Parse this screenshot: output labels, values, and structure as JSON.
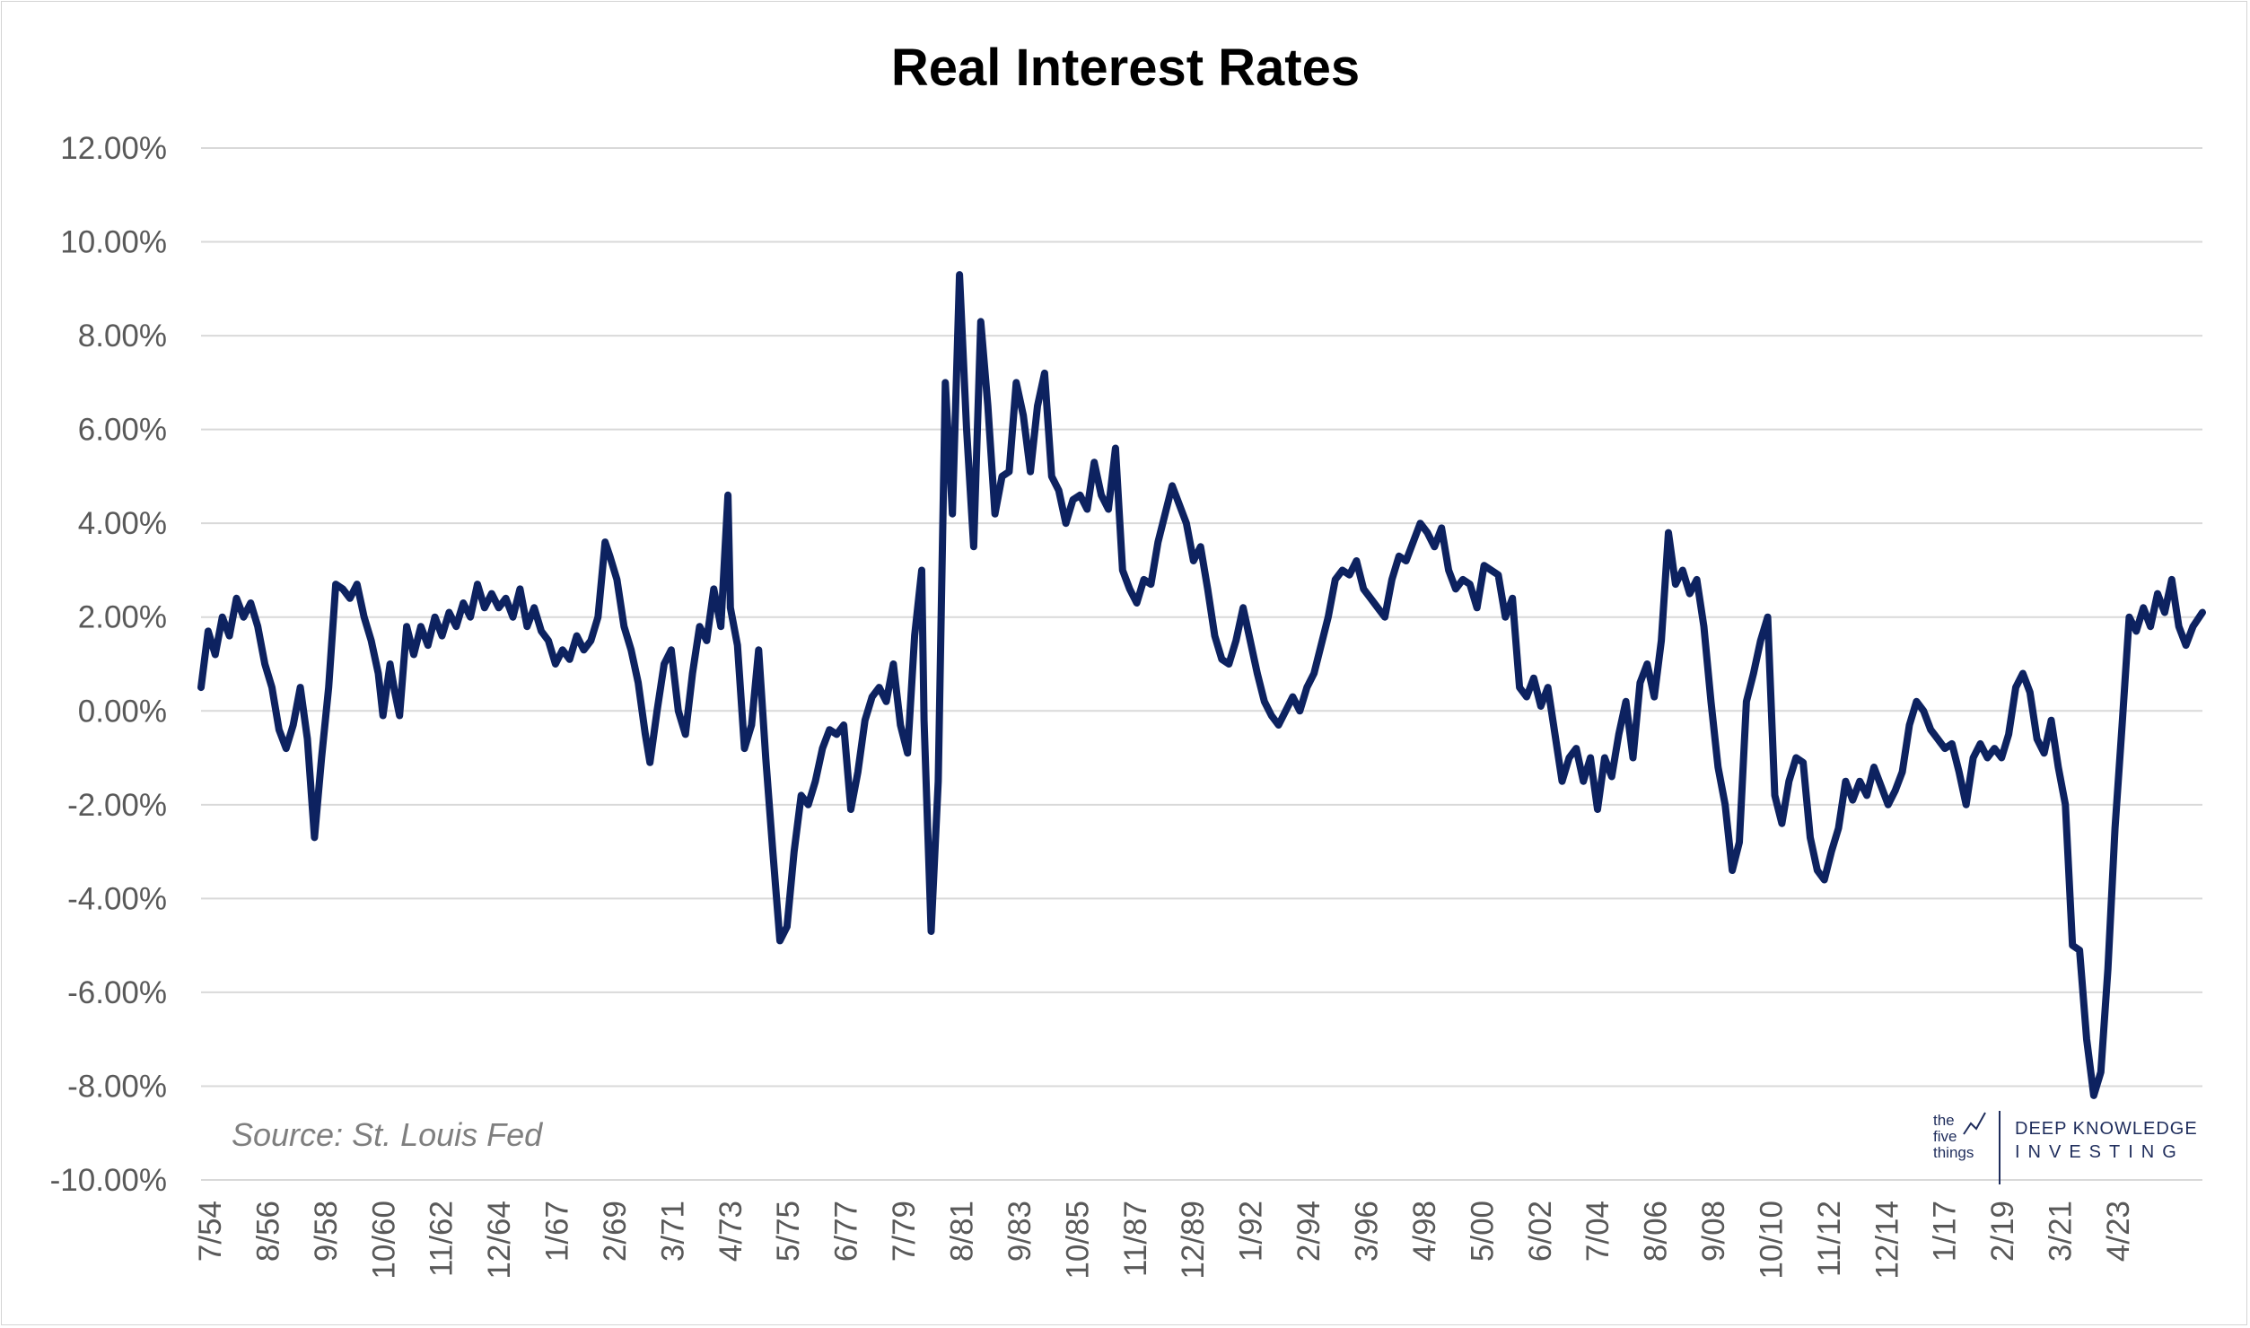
{
  "chart_data": {
    "type": "line",
    "title": "Real Interest Rates",
    "source_note": "Source: St. Louis Fed",
    "ylim": [
      -10,
      12
    ],
    "y_ticks": [
      12,
      10,
      8,
      6,
      4,
      2,
      0,
      -2,
      -4,
      -6,
      -8,
      -10
    ],
    "y_tick_labels": [
      "12.00%",
      "10.00%",
      "8.00%",
      "6.00%",
      "4.00%",
      "2.00%",
      "0.00%",
      "-2.00%",
      "-4.00%",
      "-6.00%",
      "-8.00%",
      "-10.00%"
    ],
    "grid": "horizontal",
    "x_tick_labels": [
      "7/54",
      "8/56",
      "9/58",
      "10/60",
      "11/62",
      "12/64",
      "1/67",
      "2/69",
      "3/71",
      "4/73",
      "5/75",
      "6/77",
      "7/79",
      "8/81",
      "9/83",
      "10/85",
      "11/87",
      "12/89",
      "1/92",
      "2/94",
      "3/96",
      "4/98",
      "5/00",
      "6/02",
      "7/04",
      "8/06",
      "9/08",
      "10/10",
      "11/12",
      "12/14",
      "1/17",
      "2/19",
      "3/21",
      "4/23"
    ],
    "x_range": [
      "1954-07",
      "2025-02"
    ],
    "series": [
      {
        "color": "#0d2260",
        "points": [
          [
            "1954-07",
            0.5
          ],
          [
            "1954-10",
            1.7
          ],
          [
            "1955-01",
            1.2
          ],
          [
            "1955-04",
            2.0
          ],
          [
            "1955-07",
            1.6
          ],
          [
            "1955-10",
            2.4
          ],
          [
            "1956-01",
            2.0
          ],
          [
            "1956-04",
            2.3
          ],
          [
            "1956-07",
            1.8
          ],
          [
            "1956-10",
            1.0
          ],
          [
            "1957-01",
            0.5
          ],
          [
            "1957-04",
            -0.4
          ],
          [
            "1957-07",
            -0.8
          ],
          [
            "1957-10",
            -0.3
          ],
          [
            "1958-01",
            0.5
          ],
          [
            "1958-04",
            -0.6
          ],
          [
            "1958-07",
            -2.7
          ],
          [
            "1958-10",
            -1.0
          ],
          [
            "1959-01",
            0.5
          ],
          [
            "1959-04",
            2.7
          ],
          [
            "1959-07",
            2.6
          ],
          [
            "1959-10",
            2.4
          ],
          [
            "1960-01",
            2.7
          ],
          [
            "1960-04",
            2.0
          ],
          [
            "1960-07",
            1.5
          ],
          [
            "1960-10",
            0.8
          ],
          [
            "1960-12",
            -0.1
          ],
          [
            "1961-03",
            1.0
          ],
          [
            "1961-05",
            0.4
          ],
          [
            "1961-07",
            -0.1
          ],
          [
            "1961-10",
            1.8
          ],
          [
            "1962-01",
            1.2
          ],
          [
            "1962-04",
            1.8
          ],
          [
            "1962-07",
            1.4
          ],
          [
            "1962-10",
            2.0
          ],
          [
            "1963-01",
            1.6
          ],
          [
            "1963-04",
            2.1
          ],
          [
            "1963-07",
            1.8
          ],
          [
            "1963-10",
            2.3
          ],
          [
            "1964-01",
            2.0
          ],
          [
            "1964-04",
            2.7
          ],
          [
            "1964-07",
            2.2
          ],
          [
            "1964-10",
            2.5
          ],
          [
            "1965-01",
            2.2
          ],
          [
            "1965-04",
            2.4
          ],
          [
            "1965-07",
            2.0
          ],
          [
            "1965-10",
            2.6
          ],
          [
            "1966-01",
            1.8
          ],
          [
            "1966-04",
            2.2
          ],
          [
            "1966-07",
            1.7
          ],
          [
            "1966-10",
            1.5
          ],
          [
            "1967-01",
            1.0
          ],
          [
            "1967-04",
            1.3
          ],
          [
            "1967-07",
            1.1
          ],
          [
            "1967-10",
            1.6
          ],
          [
            "1968-01",
            1.3
          ],
          [
            "1968-04",
            1.5
          ],
          [
            "1968-07",
            2.0
          ],
          [
            "1968-10",
            3.6
          ],
          [
            "1968-12",
            3.3
          ],
          [
            "1969-03",
            2.8
          ],
          [
            "1969-06",
            1.8
          ],
          [
            "1969-09",
            1.3
          ],
          [
            "1969-12",
            0.6
          ],
          [
            "1970-03",
            -0.5
          ],
          [
            "1970-05",
            -1.1
          ],
          [
            "1970-08",
            0.0
          ],
          [
            "1970-11",
            1.0
          ],
          [
            "1971-02",
            1.3
          ],
          [
            "1971-05",
            0.0
          ],
          [
            "1971-08",
            -0.5
          ],
          [
            "1971-11",
            0.8
          ],
          [
            "1972-02",
            1.8
          ],
          [
            "1972-05",
            1.5
          ],
          [
            "1972-08",
            2.6
          ],
          [
            "1972-11",
            1.8
          ],
          [
            "1973-02",
            4.6
          ],
          [
            "1973-03",
            2.2
          ],
          [
            "1973-06",
            1.4
          ],
          [
            "1973-09",
            -0.8
          ],
          [
            "1973-12",
            -0.3
          ],
          [
            "1974-03",
            1.3
          ],
          [
            "1974-06",
            -1.0
          ],
          [
            "1974-09",
            -3.0
          ],
          [
            "1974-12",
            -4.9
          ],
          [
            "1975-03",
            -4.6
          ],
          [
            "1975-06",
            -3.0
          ],
          [
            "1975-09",
            -1.8
          ],
          [
            "1975-12",
            -2.0
          ],
          [
            "1976-03",
            -1.5
          ],
          [
            "1976-06",
            -0.8
          ],
          [
            "1976-09",
            -0.4
          ],
          [
            "1976-12",
            -0.5
          ],
          [
            "1977-03",
            -0.3
          ],
          [
            "1977-06",
            -2.1
          ],
          [
            "1977-09",
            -1.3
          ],
          [
            "1977-12",
            -0.2
          ],
          [
            "1978-03",
            0.3
          ],
          [
            "1978-06",
            0.5
          ],
          [
            "1978-09",
            0.2
          ],
          [
            "1978-12",
            1.0
          ],
          [
            "1979-03",
            -0.3
          ],
          [
            "1979-06",
            -0.9
          ],
          [
            "1979-09",
            1.6
          ],
          [
            "1979-12",
            3.0
          ],
          [
            "1980-01",
            -0.2
          ],
          [
            "1980-04",
            -4.7
          ],
          [
            "1980-07",
            -1.5
          ],
          [
            "1980-10",
            7.0
          ],
          [
            "1981-01",
            4.2
          ],
          [
            "1981-04",
            9.3
          ],
          [
            "1981-07",
            6.0
          ],
          [
            "1981-10",
            3.5
          ],
          [
            "1982-01",
            8.3
          ],
          [
            "1982-04",
            6.5
          ],
          [
            "1982-07",
            4.2
          ],
          [
            "1982-10",
            5.0
          ],
          [
            "1983-01",
            5.1
          ],
          [
            "1983-04",
            7.0
          ],
          [
            "1983-07",
            6.3
          ],
          [
            "1983-10",
            5.1
          ],
          [
            "1984-01",
            6.5
          ],
          [
            "1984-04",
            7.2
          ],
          [
            "1984-07",
            5.0
          ],
          [
            "1984-10",
            4.7
          ],
          [
            "1985-01",
            4.0
          ],
          [
            "1985-04",
            4.5
          ],
          [
            "1985-07",
            4.6
          ],
          [
            "1985-10",
            4.3
          ],
          [
            "1986-01",
            5.3
          ],
          [
            "1986-04",
            4.6
          ],
          [
            "1986-07",
            4.3
          ],
          [
            "1986-10",
            5.6
          ],
          [
            "1987-01",
            3.0
          ],
          [
            "1987-04",
            2.6
          ],
          [
            "1987-07",
            2.3
          ],
          [
            "1987-10",
            2.8
          ],
          [
            "1988-01",
            2.7
          ],
          [
            "1988-04",
            3.6
          ],
          [
            "1988-07",
            4.2
          ],
          [
            "1988-10",
            4.8
          ],
          [
            "1989-01",
            4.4
          ],
          [
            "1989-04",
            4.0
          ],
          [
            "1989-07",
            3.2
          ],
          [
            "1989-10",
            3.5
          ],
          [
            "1990-01",
            2.6
          ],
          [
            "1990-04",
            1.6
          ],
          [
            "1990-07",
            1.1
          ],
          [
            "1990-10",
            1.0
          ],
          [
            "1991-01",
            1.5
          ],
          [
            "1991-04",
            2.2
          ],
          [
            "1991-07",
            1.5
          ],
          [
            "1991-10",
            0.8
          ],
          [
            "1992-01",
            0.2
          ],
          [
            "1992-04",
            -0.1
          ],
          [
            "1992-07",
            -0.3
          ],
          [
            "1992-10",
            0.0
          ],
          [
            "1993-01",
            0.3
          ],
          [
            "1993-04",
            0.0
          ],
          [
            "1993-07",
            0.5
          ],
          [
            "1993-10",
            0.8
          ],
          [
            "1994-01",
            1.4
          ],
          [
            "1994-04",
            2.0
          ],
          [
            "1994-07",
            2.8
          ],
          [
            "1994-10",
            3.0
          ],
          [
            "1995-01",
            2.9
          ],
          [
            "1995-04",
            3.2
          ],
          [
            "1995-07",
            2.6
          ],
          [
            "1995-10",
            2.4
          ],
          [
            "1996-01",
            2.2
          ],
          [
            "1996-04",
            2.0
          ],
          [
            "1996-07",
            2.8
          ],
          [
            "1996-10",
            3.3
          ],
          [
            "1997-01",
            3.2
          ],
          [
            "1997-04",
            3.6
          ],
          [
            "1997-07",
            4.0
          ],
          [
            "1997-10",
            3.8
          ],
          [
            "1998-01",
            3.5
          ],
          [
            "1998-04",
            3.9
          ],
          [
            "1998-07",
            3.0
          ],
          [
            "1998-10",
            2.6
          ],
          [
            "1999-01",
            2.8
          ],
          [
            "1999-04",
            2.7
          ],
          [
            "1999-07",
            2.2
          ],
          [
            "1999-10",
            3.1
          ],
          [
            "2000-01",
            3.0
          ],
          [
            "2000-04",
            2.9
          ],
          [
            "2000-07",
            2.0
          ],
          [
            "2000-10",
            2.4
          ],
          [
            "2001-01",
            0.5
          ],
          [
            "2001-04",
            0.3
          ],
          [
            "2001-07",
            0.7
          ],
          [
            "2001-10",
            0.1
          ],
          [
            "2002-01",
            0.5
          ],
          [
            "2002-04",
            -0.5
          ],
          [
            "2002-07",
            -1.5
          ],
          [
            "2002-10",
            -1.0
          ],
          [
            "2003-01",
            -0.8
          ],
          [
            "2003-04",
            -1.5
          ],
          [
            "2003-07",
            -1.0
          ],
          [
            "2003-10",
            -2.1
          ],
          [
            "2004-01",
            -1.0
          ],
          [
            "2004-04",
            -1.4
          ],
          [
            "2004-07",
            -0.5
          ],
          [
            "2004-10",
            0.2
          ],
          [
            "2005-01",
            -1.0
          ],
          [
            "2005-04",
            0.6
          ],
          [
            "2005-07",
            1.0
          ],
          [
            "2005-10",
            0.3
          ],
          [
            "2006-01",
            1.5
          ],
          [
            "2006-04",
            3.8
          ],
          [
            "2006-07",
            2.7
          ],
          [
            "2006-10",
            3.0
          ],
          [
            "2007-01",
            2.5
          ],
          [
            "2007-04",
            2.8
          ],
          [
            "2007-07",
            1.8
          ],
          [
            "2007-10",
            0.2
          ],
          [
            "2008-01",
            -1.2
          ],
          [
            "2008-04",
            -2.0
          ],
          [
            "2008-07",
            -3.4
          ],
          [
            "2008-10",
            -2.8
          ],
          [
            "2009-01",
            0.2
          ],
          [
            "2009-04",
            0.8
          ],
          [
            "2009-07",
            1.5
          ],
          [
            "2009-10",
            2.0
          ],
          [
            "2010-01",
            -1.8
          ],
          [
            "2010-04",
            -2.4
          ],
          [
            "2010-07",
            -1.5
          ],
          [
            "2010-10",
            -1.0
          ],
          [
            "2011-01",
            -1.1
          ],
          [
            "2011-04",
            -2.7
          ],
          [
            "2011-07",
            -3.4
          ],
          [
            "2011-10",
            -3.6
          ],
          [
            "2012-01",
            -3.0
          ],
          [
            "2012-04",
            -2.5
          ],
          [
            "2012-07",
            -1.5
          ],
          [
            "2012-10",
            -1.9
          ],
          [
            "2013-01",
            -1.5
          ],
          [
            "2013-04",
            -1.8
          ],
          [
            "2013-07",
            -1.2
          ],
          [
            "2013-10",
            -1.6
          ],
          [
            "2014-01",
            -2.0
          ],
          [
            "2014-04",
            -1.7
          ],
          [
            "2014-07",
            -1.3
          ],
          [
            "2014-10",
            -0.3
          ],
          [
            "2015-01",
            0.2
          ],
          [
            "2015-04",
            0.0
          ],
          [
            "2015-07",
            -0.4
          ],
          [
            "2015-10",
            -0.6
          ],
          [
            "2016-01",
            -0.8
          ],
          [
            "2016-04",
            -0.7
          ],
          [
            "2016-07",
            -1.3
          ],
          [
            "2016-10",
            -2.0
          ],
          [
            "2017-01",
            -1.0
          ],
          [
            "2017-04",
            -0.7
          ],
          [
            "2017-07",
            -1.0
          ],
          [
            "2017-10",
            -0.8
          ],
          [
            "2018-01",
            -1.0
          ],
          [
            "2018-04",
            -0.5
          ],
          [
            "2018-07",
            0.5
          ],
          [
            "2018-10",
            0.8
          ],
          [
            "2019-01",
            0.4
          ],
          [
            "2019-04",
            -0.6
          ],
          [
            "2019-07",
            -0.9
          ],
          [
            "2019-10",
            -0.2
          ],
          [
            "2020-01",
            -1.2
          ],
          [
            "2020-04",
            -2.0
          ],
          [
            "2020-07",
            -5.0
          ],
          [
            "2020-10",
            -5.1
          ],
          [
            "2021-01",
            -7.0
          ],
          [
            "2021-04",
            -8.2
          ],
          [
            "2021-07",
            -7.7
          ],
          [
            "2021-10",
            -5.5
          ],
          [
            "2022-01",
            -2.5
          ],
          [
            "2022-04",
            -0.3
          ],
          [
            "2022-07",
            2.0
          ],
          [
            "2022-10",
            1.7
          ],
          [
            "2023-01",
            2.2
          ],
          [
            "2023-04",
            1.8
          ],
          [
            "2023-07",
            2.5
          ],
          [
            "2023-10",
            2.1
          ],
          [
            "2024-01",
            2.8
          ],
          [
            "2024-04",
            1.8
          ],
          [
            "2024-07",
            1.4
          ],
          [
            "2024-10",
            1.8
          ],
          [
            "2025-02",
            2.1
          ]
        ]
      }
    ]
  },
  "logo": {
    "mark_lines": [
      "the",
      "five",
      "things"
    ],
    "brand_line1": "DEEP KNOWLEDGE",
    "brand_line2": "INVESTING"
  }
}
